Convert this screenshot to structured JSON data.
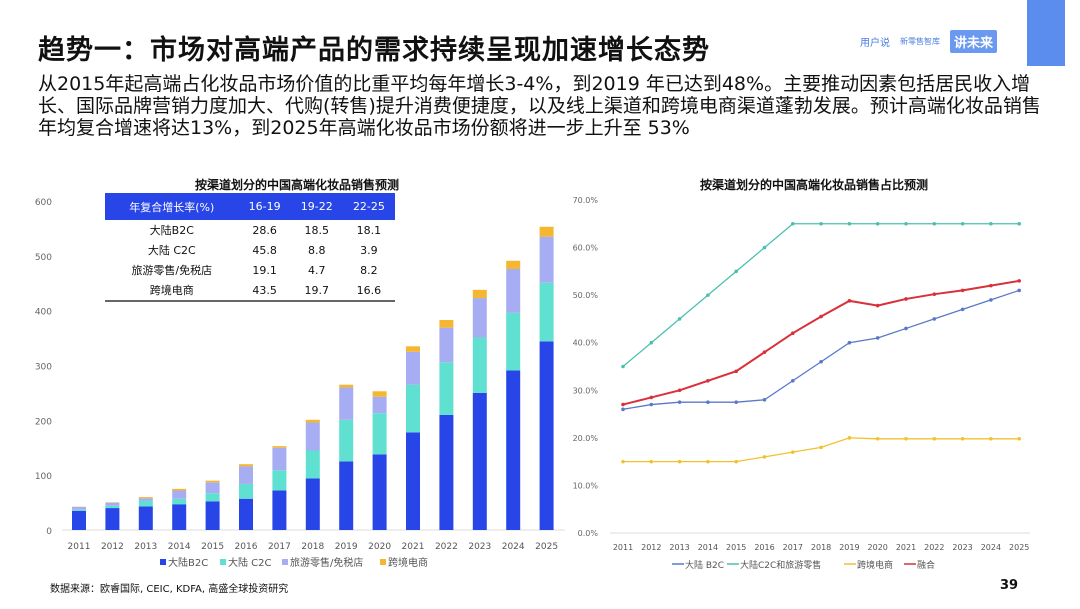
{
  "title": "趋势一：市场对高端产品的需求持续呈现加速增长态势",
  "paragraph": "从2015年起高端占化妆品市场价值的比重平均每年增长3-4%，到2019 年已达到48%。主要推动因素包括居民收入增长、国际品牌营销力度加大、代购(转售)提升消费便捷度，以及线上渠道和跨境电商渠道蓬勃发展。预计高端化妆品销售年均复合增速将达13%，到2025年高端化妆品市场份额将进一步上升至 53%",
  "logos": [
    "用户说",
    "新零售智库",
    "讲未来"
  ],
  "accent_color": "#5b8def",
  "table": {
    "headers": [
      "年复合增长率(%)",
      "16-19",
      "19-22",
      "22-25"
    ],
    "rows": [
      [
        "大陆B2C",
        "28.6",
        "18.5",
        "18.1"
      ],
      [
        "大陆 C2C",
        "45.8",
        "8.8",
        "3.9"
      ],
      [
        "旅游零售/免税店",
        "19.1",
        "4.7",
        "8.2"
      ],
      [
        "跨境电商",
        "43.5",
        "19.7",
        "16.6"
      ]
    ]
  },
  "source": "数据来源：欧睿国际, CEIC, KDFA, 高盛全球投资研究",
  "page_number": "39",
  "chart_data": [
    {
      "type": "bar",
      "stacked": true,
      "title": "按渠道划分的中国高端化妆品销售预测",
      "ylim": [
        0,
        600
      ],
      "yticks": [
        0,
        100,
        200,
        300,
        400,
        500,
        600
      ],
      "categories": [
        "2011",
        "2012",
        "2013",
        "2014",
        "2015",
        "2016",
        "2017",
        "2018",
        "2019",
        "2020",
        "2021",
        "2022",
        "2023",
        "2024",
        "2025"
      ],
      "legend": "bottom",
      "series": [
        {
          "name": "大陆B2C",
          "color": "#2846e8",
          "values": [
            35,
            40,
            43,
            47,
            52,
            57,
            72,
            94,
            125,
            138,
            178,
            210,
            250,
            291,
            344
          ]
        },
        {
          "name": "大陆 C2C",
          "color": "#5fe0d0",
          "values": [
            2,
            4,
            10,
            10,
            15,
            27,
            37,
            51,
            76,
            75,
            87,
            96,
            101,
            105,
            107
          ]
        },
        {
          "name": "旅游零售/免税店",
          "color": "#a6adf2",
          "values": [
            5,
            6,
            5,
            15,
            20,
            32,
            41,
            51,
            59,
            30,
            60,
            63,
            72,
            80,
            84
          ]
        },
        {
          "name": "跨境电商",
          "color": "#f5b731",
          "values": [
            0.5,
            0.5,
            2,
            3,
            3,
            4,
            3,
            5,
            5,
            10,
            10,
            14,
            15,
            15,
            18
          ]
        }
      ]
    },
    {
      "type": "line",
      "title": "按渠道划分的中国高端化妆品销售占比预测",
      "ylim": [
        0,
        70
      ],
      "yticks": [
        "0.0%",
        "10.0%",
        "20.0%",
        "30.0%",
        "40.0%",
        "50.0%",
        "60.0%",
        "70.0%"
      ],
      "categories": [
        "2011",
        "2012",
        "2013",
        "2014",
        "2015",
        "2016",
        "2017",
        "2018",
        "2019",
        "2020",
        "2021",
        "2022",
        "2023",
        "2024",
        "2025"
      ],
      "legend": "bottom",
      "series": [
        {
          "name": "大陆 B2C",
          "color": "#5b78c8",
          "values": [
            26,
            27,
            27.5,
            27.5,
            27.5,
            28,
            32,
            36,
            40,
            41,
            43,
            45,
            47,
            49,
            51
          ]
        },
        {
          "name": "大陆C2C和旅游零售",
          "color": "#4bc0b0",
          "values": [
            35,
            40,
            45,
            50,
            55,
            60,
            65,
            65,
            65,
            65,
            65,
            65,
            65,
            65,
            65
          ]
        },
        {
          "name": "跨境电商",
          "color": "#f2c12e",
          "values": [
            15,
            15,
            15,
            15,
            15,
            16,
            17,
            18,
            20,
            19.8,
            19.8,
            19.8,
            19.8,
            19.8,
            19.8
          ]
        },
        {
          "name": "融合",
          "color": "#d9303a",
          "values": [
            27,
            28.5,
            30,
            32,
            34,
            38,
            42,
            45.5,
            48.8,
            47.8,
            49.2,
            50.2,
            51,
            52,
            53
          ]
        }
      ]
    }
  ]
}
